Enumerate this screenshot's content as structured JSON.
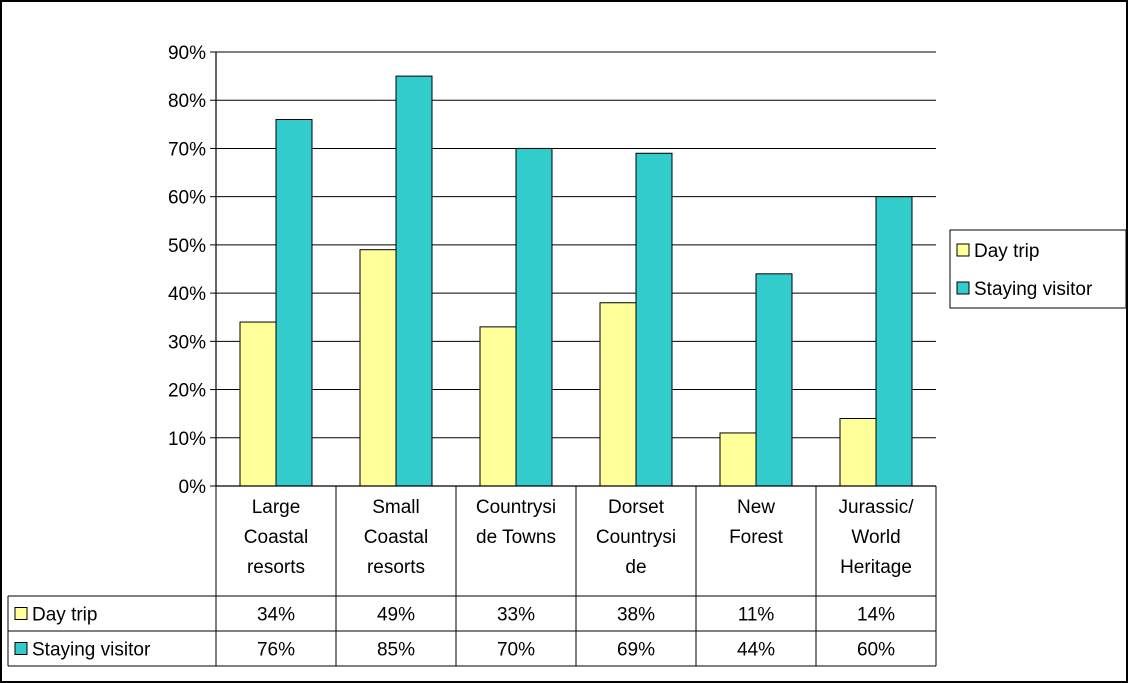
{
  "chart_data": {
    "type": "bar",
    "categories": [
      [
        "Large",
        "Coastal",
        "resorts"
      ],
      [
        "Small",
        "Coastal",
        "resorts"
      ],
      [
        "Countrysi",
        "de Towns"
      ],
      [
        "Dorset",
        "Countrysi",
        "de"
      ],
      [
        "New",
        "Forest"
      ],
      [
        "Jurassic/",
        "World",
        "Heritage"
      ]
    ],
    "series": [
      {
        "name": "Day trip",
        "values": [
          34,
          49,
          33,
          38,
          11,
          14
        ],
        "labels": [
          "34%",
          "49%",
          "33%",
          "38%",
          "11%",
          "14%"
        ],
        "color": "#FFFF99"
      },
      {
        "name": "Staying visitor",
        "values": [
          76,
          85,
          70,
          69,
          44,
          60
        ],
        "labels": [
          "76%",
          "85%",
          "70%",
          "69%",
          "44%",
          "60%"
        ],
        "color": "#33CCCC"
      }
    ],
    "ylim": [
      0,
      90
    ],
    "yticks": [
      "0%",
      "10%",
      "20%",
      "30%",
      "40%",
      "50%",
      "60%",
      "70%",
      "80%",
      "90%"
    ],
    "grid": true,
    "legend_position": "right",
    "data_table": true
  }
}
